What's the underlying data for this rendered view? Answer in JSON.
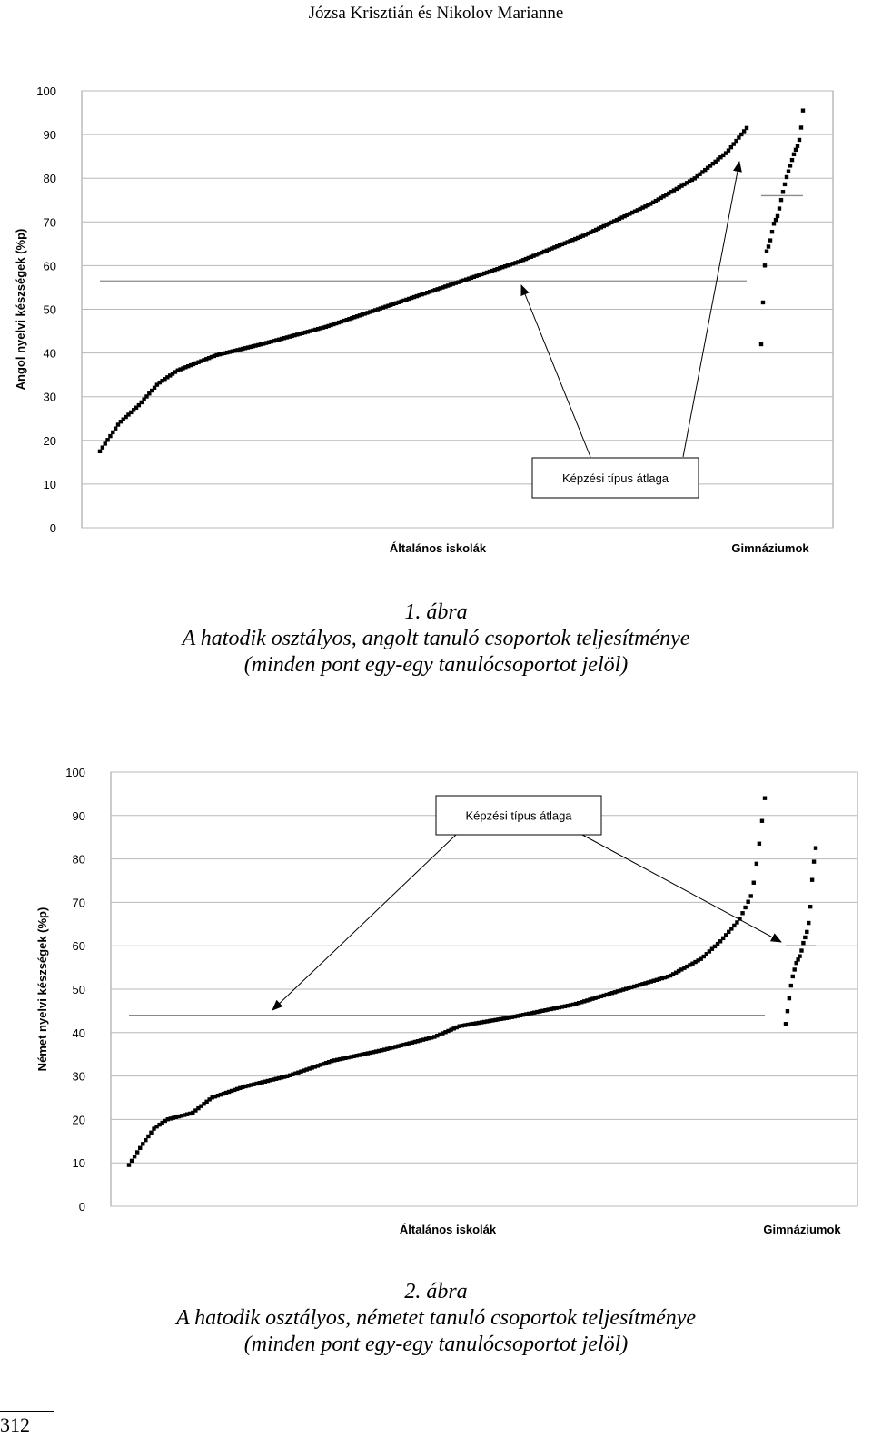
{
  "header": {
    "running_head": "Józsa Krisztián és Nikolov Marianne"
  },
  "page_number": "312",
  "chart_data": [
    {
      "type": "scatter",
      "ylabel": "Angol nyelvi készségek (%p)",
      "ylim": [
        0,
        100
      ],
      "yticks": [
        0,
        10,
        20,
        30,
        40,
        50,
        60,
        70,
        80,
        90,
        100
      ],
      "categories": [
        "Általános iskolák",
        "Gimnáziumok"
      ],
      "annotation": "Képzési típus átlaga",
      "series": [
        {
          "name": "Általános iskolák",
          "count": 250,
          "min": 17.5,
          "max": 91.5,
          "mean": 56.5,
          "profile": [
            [
              0,
              17.5
            ],
            [
              0.03,
              24
            ],
            [
              0.06,
              28
            ],
            [
              0.09,
              33
            ],
            [
              0.12,
              36
            ],
            [
              0.18,
              39.5
            ],
            [
              0.25,
              42
            ],
            [
              0.35,
              46
            ],
            [
              0.45,
              51
            ],
            [
              0.55,
              56
            ],
            [
              0.65,
              61
            ],
            [
              0.75,
              67
            ],
            [
              0.85,
              74
            ],
            [
              0.92,
              80
            ],
            [
              0.97,
              86
            ],
            [
              1,
              91.5
            ]
          ]
        },
        {
          "name": "Gimnáziumok",
          "count": 24,
          "min": 42,
          "max": 95.5,
          "mean": 76,
          "profile": [
            [
              0,
              42
            ],
            [
              0.05,
              53
            ],
            [
              0.1,
              62.5
            ],
            [
              0.2,
              65
            ],
            [
              0.3,
              69.5
            ],
            [
              0.4,
              71.5
            ],
            [
              0.5,
              76
            ],
            [
              0.6,
              80
            ],
            [
              0.7,
              83
            ],
            [
              0.8,
              86
            ],
            [
              0.9,
              88
            ],
            [
              0.95,
              91
            ],
            [
              1,
              95.5
            ]
          ]
        }
      ],
      "means": [
        56.5,
        76
      ]
    },
    {
      "type": "scatter",
      "ylabel": "Német nyelvi készségek (%p)",
      "ylim": [
        0,
        100
      ],
      "yticks": [
        0,
        10,
        20,
        30,
        40,
        50,
        60,
        70,
        80,
        90,
        100
      ],
      "categories": [
        "Általános iskolák",
        "Gimnáziumok"
      ],
      "annotation": "Képzési típus átlaga",
      "series": [
        {
          "name": "Általános iskolák",
          "count": 230,
          "min": 9.5,
          "max": 94,
          "mean": 44,
          "profile": [
            [
              0,
              9.5
            ],
            [
              0.02,
              14
            ],
            [
              0.04,
              18
            ],
            [
              0.06,
              20
            ],
            [
              0.1,
              21.5
            ],
            [
              0.13,
              25
            ],
            [
              0.18,
              27.5
            ],
            [
              0.25,
              30
            ],
            [
              0.32,
              33.5
            ],
            [
              0.4,
              36
            ],
            [
              0.48,
              39
            ],
            [
              0.52,
              41.5
            ],
            [
              0.6,
              43.5
            ],
            [
              0.7,
              46.5
            ],
            [
              0.78,
              50
            ],
            [
              0.85,
              53
            ],
            [
              0.9,
              57
            ],
            [
              0.93,
              61
            ],
            [
              0.96,
              66
            ],
            [
              0.98,
              72
            ],
            [
              0.99,
              82
            ],
            [
              1,
              94
            ]
          ]
        },
        {
          "name": "Gimnáziumok",
          "count": 18,
          "min": 42,
          "max": 82.5,
          "mean": 60,
          "profile": [
            [
              0,
              42
            ],
            [
              0.1,
              47
            ],
            [
              0.2,
              52
            ],
            [
              0.35,
              56
            ],
            [
              0.5,
              58
            ],
            [
              0.6,
              61
            ],
            [
              0.7,
              63
            ],
            [
              0.8,
              66.5
            ],
            [
              0.88,
              75
            ],
            [
              0.95,
              80
            ],
            [
              1,
              82.5
            ]
          ]
        }
      ],
      "means": [
        44,
        60
      ]
    }
  ],
  "captions": [
    {
      "number": "1. ábra",
      "line1": "A hatodik osztályos, angolt tanuló csoportok teljesítménye",
      "line2": "(minden pont egy-egy tanulócsoportot jelöl)"
    },
    {
      "number": "2. ábra",
      "line1": "A hatodik osztályos, németet tanuló csoportok teljesítménye",
      "line2": "(minden pont egy-egy tanulócsoportot jelöl)"
    }
  ]
}
